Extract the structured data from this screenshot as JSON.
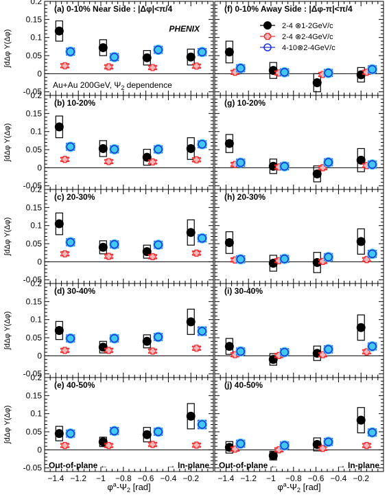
{
  "figure": {
    "experiment_label": "PHENIX",
    "system_label_line": "Au+Au 200GeV, Ψ",
    "system_label_sub": "2",
    "system_label_tail": " dependence",
    "ylabel": "∫dΔφ Y(Δφ)",
    "xlabel_left": "φ",
    "xlabel_sup": "a",
    "xlabel_right": "-Ψ",
    "xlabel_sub": "2",
    "xlabel_unit": " [rad]",
    "out_of_plane_label": "Out-of-plane ←",
    "in_plane_label": "→ In-plane",
    "near_side_header": "Near Side : |Δφ|<π/4",
    "away_side_header": "Away Side : |Δφ-π|<π/4",
    "legend": [
      {
        "label": "2-4 ⊗1-2GeV/c",
        "marker": "filled-circle",
        "color": "#000000"
      },
      {
        "label": "2-4 ⊗2-4GeV/c",
        "marker": "open-cross",
        "color": "#e8282b"
      },
      {
        "label": "4-10⊗2-4GeV/c",
        "marker": "open-circle",
        "color": "#1a35d6"
      }
    ]
  },
  "chart_data": [
    {
      "type": "scatter",
      "panel": "(a)",
      "centrality": "0-10%",
      "side": "near",
      "xlim": [
        -1.5,
        0
      ],
      "ylim": [
        -0.06,
        0.2
      ],
      "x_ticks": [
        "-1.4",
        "-1.2",
        "-1",
        "-0.8",
        "-0.6",
        "-0.4",
        "-0.2"
      ],
      "y_ticks": [
        "-0.05",
        "0",
        "0.05",
        "0.1",
        "0.15",
        "0.2"
      ],
      "series": [
        {
          "name": "2-4 ⊗1-2GeV/c",
          "x": [
            -1.37,
            -0.98,
            -0.59,
            -0.2
          ],
          "y": [
            0.118,
            0.072,
            0.044,
            0.046
          ],
          "sys": [
            0.028,
            0.022,
            0.02,
            0.022
          ]
        },
        {
          "name": "2-4 ⊗2-4GeV/c",
          "x": [
            -1.32,
            -0.93,
            -0.54,
            -0.15
          ],
          "y": [
            0.022,
            0.019,
            0.017,
            0.021
          ],
          "sys": [
            0.006,
            0.006,
            0.006,
            0.006
          ]
        },
        {
          "name": "4-10⊗2-4GeV/c",
          "x": [
            -1.27,
            -0.88,
            -0.49,
            -0.1
          ],
          "y": [
            0.061,
            0.046,
            0.066,
            0.06
          ],
          "sys": [
            0.01,
            0.01,
            0.01,
            0.01
          ]
        }
      ]
    },
    {
      "type": "scatter",
      "panel": "(b)",
      "centrality": "10-20%",
      "side": "near",
      "xlim": [
        -1.5,
        0
      ],
      "ylim": [
        -0.06,
        0.2
      ],
      "x_ticks": [
        "-1.4",
        "-1.2",
        "-1",
        "-0.8",
        "-0.6",
        "-0.4",
        "-0.2"
      ],
      "y_ticks": [
        "-0.05",
        "0",
        "0.05",
        "0.1",
        "0.15",
        "0.2"
      ],
      "series": [
        {
          "name": "2-4 ⊗1-2GeV/c",
          "x": [
            -1.37,
            -0.98,
            -0.59,
            -0.2
          ],
          "y": [
            0.113,
            0.053,
            0.029,
            0.053
          ],
          "sys": [
            0.03,
            0.022,
            0.022,
            0.03
          ]
        },
        {
          "name": "2-4 ⊗2-4GeV/c",
          "x": [
            -1.32,
            -0.93,
            -0.54,
            -0.15
          ],
          "y": [
            0.023,
            0.017,
            0.016,
            0.022
          ],
          "sys": [
            0.006,
            0.006,
            0.006,
            0.006
          ]
        },
        {
          "name": "4-10⊗2-4GeV/c",
          "x": [
            -1.27,
            -0.88,
            -0.49,
            -0.1
          ],
          "y": [
            0.058,
            0.051,
            0.051,
            0.065
          ],
          "sys": [
            0.01,
            0.01,
            0.01,
            0.01
          ]
        }
      ]
    },
    {
      "type": "scatter",
      "panel": "(c)",
      "centrality": "20-30%",
      "side": "near",
      "xlim": [
        -1.5,
        0
      ],
      "ylim": [
        -0.06,
        0.2
      ],
      "x_ticks": [
        "-1.4",
        "-1.2",
        "-1",
        "-0.8",
        "-0.6",
        "-0.4",
        "-0.2"
      ],
      "y_ticks": [
        "-0.05",
        "0",
        "0.05",
        "0.1",
        "0.15",
        "0.2"
      ],
      "series": [
        {
          "name": "2-4 ⊗1-2GeV/c",
          "x": [
            -1.37,
            -0.98,
            -0.59,
            -0.2
          ],
          "y": [
            0.105,
            0.04,
            0.028,
            0.081
          ],
          "sys": [
            0.03,
            0.018,
            0.018,
            0.035
          ]
        },
        {
          "name": "2-4 ⊗2-4GeV/c",
          "x": [
            -1.32,
            -0.93,
            -0.54,
            -0.15
          ],
          "y": [
            0.022,
            0.015,
            0.014,
            0.024
          ],
          "sys": [
            0.006,
            0.006,
            0.006,
            0.006
          ]
        },
        {
          "name": "4-10⊗2-4GeV/c",
          "x": [
            -1.27,
            -0.88,
            -0.49,
            -0.1
          ],
          "y": [
            0.054,
            0.048,
            0.047,
            0.065
          ],
          "sys": [
            0.01,
            0.01,
            0.01,
            0.01
          ]
        }
      ]
    },
    {
      "type": "scatter",
      "panel": "(d)",
      "centrality": "30-40%",
      "side": "near",
      "xlim": [
        -1.5,
        0
      ],
      "ylim": [
        -0.06,
        0.2
      ],
      "x_ticks": [
        "-1.4",
        "-1.2",
        "-1",
        "-0.8",
        "-0.6",
        "-0.4",
        "-0.2"
      ],
      "y_ticks": [
        "-0.05",
        "0",
        "0.05",
        "0.1",
        "0.15",
        "0.2"
      ],
      "series": [
        {
          "name": "2-4 ⊗1-2GeV/c",
          "x": [
            -1.37,
            -0.98,
            -0.59,
            -0.2
          ],
          "y": [
            0.07,
            0.024,
            0.04,
            0.094
          ],
          "sys": [
            0.025,
            0.016,
            0.018,
            0.035
          ]
        },
        {
          "name": "2-4 ⊗2-4GeV/c",
          "x": [
            -1.32,
            -0.93,
            -0.54,
            -0.15
          ],
          "y": [
            0.015,
            0.015,
            0.013,
            0.021
          ],
          "sys": [
            0.006,
            0.006,
            0.006,
            0.006
          ]
        },
        {
          "name": "4-10⊗2-4GeV/c",
          "x": [
            -1.27,
            -0.88,
            -0.49,
            -0.1
          ],
          "y": [
            0.048,
            0.048,
            0.052,
            0.068
          ],
          "sys": [
            0.01,
            0.01,
            0.01,
            0.012
          ]
        }
      ]
    },
    {
      "type": "scatter",
      "panel": "(e)",
      "centrality": "40-50%",
      "side": "near",
      "xlim": [
        -1.5,
        0
      ],
      "ylim": [
        -0.06,
        0.2
      ],
      "x_ticks": [
        "-1.4",
        "-1.2",
        "-1",
        "-0.8",
        "-0.6",
        "-0.4",
        "-0.2"
      ],
      "y_ticks": [
        "-0.05",
        "0",
        "0.05",
        "0.1",
        "0.15",
        "0.2"
      ],
      "series": [
        {
          "name": "2-4 ⊗1-2GeV/c",
          "x": [
            -1.37,
            -0.98,
            -0.59,
            -0.2
          ],
          "y": [
            0.045,
            0.022,
            0.042,
            0.093
          ],
          "sys": [
            0.02,
            0.013,
            0.02,
            0.035
          ]
        },
        {
          "name": "2-4 ⊗2-4GeV/c",
          "x": [
            -1.32,
            -0.93,
            -0.54,
            -0.15
          ],
          "y": [
            0.012,
            0.012,
            0.015,
            0.013
          ],
          "sys": [
            0.006,
            0.006,
            0.006,
            0.006
          ]
        },
        {
          "name": "4-10⊗2-4GeV/c",
          "x": [
            -1.27,
            -0.88,
            -0.49,
            -0.1
          ],
          "y": [
            0.045,
            0.052,
            0.05,
            0.07
          ],
          "sys": [
            0.01,
            0.01,
            0.01,
            0.012
          ]
        }
      ]
    },
    {
      "type": "scatter",
      "panel": "(f)",
      "centrality": "0-10%",
      "side": "away",
      "xlim": [
        -1.5,
        0
      ],
      "ylim": [
        -0.06,
        0.2
      ],
      "x_ticks": [
        "-1.4",
        "-1.2",
        "-1",
        "-0.8",
        "-0.6",
        "-0.4",
        "-0.2"
      ],
      "y_ticks": [
        "-0.05",
        "0",
        "0.05",
        "0.1",
        "0.15",
        "0.2"
      ],
      "series": [
        {
          "name": "2-4 ⊗1-2GeV/c",
          "x": [
            -1.37,
            -0.98,
            -0.59,
            -0.2
          ],
          "y": [
            0.06,
            0.009,
            -0.025,
            -0.003
          ],
          "sys": [
            0.03,
            0.022,
            0.025,
            0.02
          ]
        },
        {
          "name": "2-4 ⊗2-4GeV/c",
          "x": [
            -1.32,
            -0.93,
            -0.54,
            -0.15
          ],
          "y": [
            0.004,
            0.002,
            -0.002,
            0.004
          ],
          "sys": [
            0.006,
            0.006,
            0.006,
            0.006
          ]
        },
        {
          "name": "4-10⊗2-4GeV/c",
          "x": [
            -1.27,
            -0.88,
            -0.49,
            -0.1
          ],
          "y": [
            0.015,
            0.004,
            0.002,
            0.012
          ],
          "sys": [
            0.01,
            0.01,
            0.01,
            0.01
          ]
        }
      ]
    },
    {
      "type": "scatter",
      "panel": "(g)",
      "centrality": "10-20%",
      "side": "away",
      "xlim": [
        -1.5,
        0
      ],
      "ylim": [
        -0.06,
        0.2
      ],
      "x_ticks": [
        "-1.4",
        "-1.2",
        "-1",
        "-0.8",
        "-0.6",
        "-0.4",
        "-0.2"
      ],
      "y_ticks": [
        "-0.05",
        "0",
        "0.05",
        "0.1",
        "0.15",
        "0.2"
      ],
      "series": [
        {
          "name": "2-4 ⊗1-2GeV/c",
          "x": [
            -1.37,
            -0.98,
            -0.59,
            -0.2
          ],
          "y": [
            0.067,
            0.004,
            -0.017,
            0.021
          ],
          "sys": [
            0.025,
            0.02,
            0.022,
            0.032
          ]
        },
        {
          "name": "2-4 ⊗2-4GeV/c",
          "x": [
            -1.32,
            -0.93,
            -0.54,
            -0.15
          ],
          "y": [
            0.009,
            0.002,
            0.0,
            0.006
          ],
          "sys": [
            0.006,
            0.006,
            0.006,
            0.006
          ]
        },
        {
          "name": "4-10⊗2-4GeV/c",
          "x": [
            -1.27,
            -0.88,
            -0.49,
            -0.1
          ],
          "y": [
            0.014,
            0.004,
            0.015,
            0.009
          ],
          "sys": [
            0.01,
            0.01,
            0.01,
            0.01
          ]
        }
      ]
    },
    {
      "type": "scatter",
      "panel": "(h)",
      "centrality": "20-30%",
      "side": "away",
      "xlim": [
        -1.5,
        0
      ],
      "ylim": [
        -0.06,
        0.2
      ],
      "x_ticks": [
        "-1.4",
        "-1.2",
        "-1",
        "-0.8",
        "-0.6",
        "-0.4",
        "-0.2"
      ],
      "y_ticks": [
        "-0.05",
        "0",
        "0.05",
        "0.1",
        "0.15",
        "0.2"
      ],
      "series": [
        {
          "name": "2-4 ⊗1-2GeV/c",
          "x": [
            -1.37,
            -0.98,
            -0.59,
            -0.2
          ],
          "y": [
            0.053,
            -0.004,
            -0.002,
            0.056
          ],
          "sys": [
            0.03,
            0.022,
            0.028,
            0.035
          ]
        },
        {
          "name": "2-4 ⊗2-4GeV/c",
          "x": [
            -1.32,
            -0.93,
            -0.54,
            -0.15
          ],
          "y": [
            0.005,
            0.003,
            0.001,
            0.006
          ],
          "sys": [
            0.006,
            0.006,
            0.006,
            0.006
          ]
        },
        {
          "name": "4-10⊗2-4GeV/c",
          "x": [
            -1.27,
            -0.88,
            -0.49,
            -0.1
          ],
          "y": [
            0.007,
            0.008,
            0.013,
            0.022
          ],
          "sys": [
            0.01,
            0.01,
            0.01,
            0.01
          ]
        }
      ]
    },
    {
      "type": "scatter",
      "panel": "(i)",
      "centrality": "30-40%",
      "side": "away",
      "xlim": [
        -1.5,
        0
      ],
      "ylim": [
        -0.06,
        0.2
      ],
      "x_ticks": [
        "-1.4",
        "-1.2",
        "-1",
        "-0.8",
        "-0.6",
        "-0.4",
        "-0.2"
      ],
      "y_ticks": [
        "-0.05",
        "0",
        "0.05",
        "0.1",
        "0.15",
        "0.2"
      ],
      "series": [
        {
          "name": "2-4 ⊗1-2GeV/c",
          "x": [
            -1.37,
            -0.98,
            -0.59,
            -0.2
          ],
          "y": [
            0.026,
            -0.01,
            0.007,
            0.078
          ],
          "sys": [
            0.022,
            0.016,
            0.02,
            0.035
          ]
        },
        {
          "name": "2-4 ⊗2-4GeV/c",
          "x": [
            -1.32,
            -0.93,
            -0.54,
            -0.15
          ],
          "y": [
            0.003,
            0.001,
            0.003,
            0.011
          ],
          "sys": [
            0.006,
            0.006,
            0.006,
            0.006
          ]
        },
        {
          "name": "4-10⊗2-4GeV/c",
          "x": [
            -1.27,
            -0.88,
            -0.49,
            -0.1
          ],
          "y": [
            0.012,
            0.01,
            0.018,
            0.026
          ],
          "sys": [
            0.01,
            0.01,
            0.01,
            0.01
          ]
        }
      ]
    },
    {
      "type": "scatter",
      "panel": "(j)",
      "centrality": "40-50%",
      "side": "away",
      "xlim": [
        -1.5,
        0
      ],
      "ylim": [
        -0.06,
        0.2
      ],
      "x_ticks": [
        "-1.4",
        "-1.2",
        "-1",
        "-0.8",
        "-0.6",
        "-0.4",
        "-0.2"
      ],
      "y_ticks": [
        "-0.05",
        "0",
        "0.05",
        "0.1",
        "0.15",
        "0.2"
      ],
      "series": [
        {
          "name": "2-4 ⊗1-2GeV/c",
          "x": [
            -1.37,
            -0.98,
            -0.59,
            -0.2
          ],
          "y": [
            0.007,
            -0.016,
            0.015,
            0.082
          ],
          "sys": [
            0.016,
            0.012,
            0.018,
            0.035
          ]
        },
        {
          "name": "2-4 ⊗2-4GeV/c",
          "x": [
            -1.32,
            -0.93,
            -0.54,
            -0.15
          ],
          "y": [
            0.002,
            0.0,
            0.004,
            0.012
          ],
          "sys": [
            0.006,
            0.006,
            0.006,
            0.006
          ]
        },
        {
          "name": "4-10⊗2-4GeV/c",
          "x": [
            -1.27,
            -0.88,
            -0.49,
            -0.1
          ],
          "y": [
            0.017,
            0.012,
            0.022,
            0.048
          ],
          "sys": [
            0.01,
            0.01,
            0.01,
            0.01
          ]
        }
      ]
    }
  ]
}
